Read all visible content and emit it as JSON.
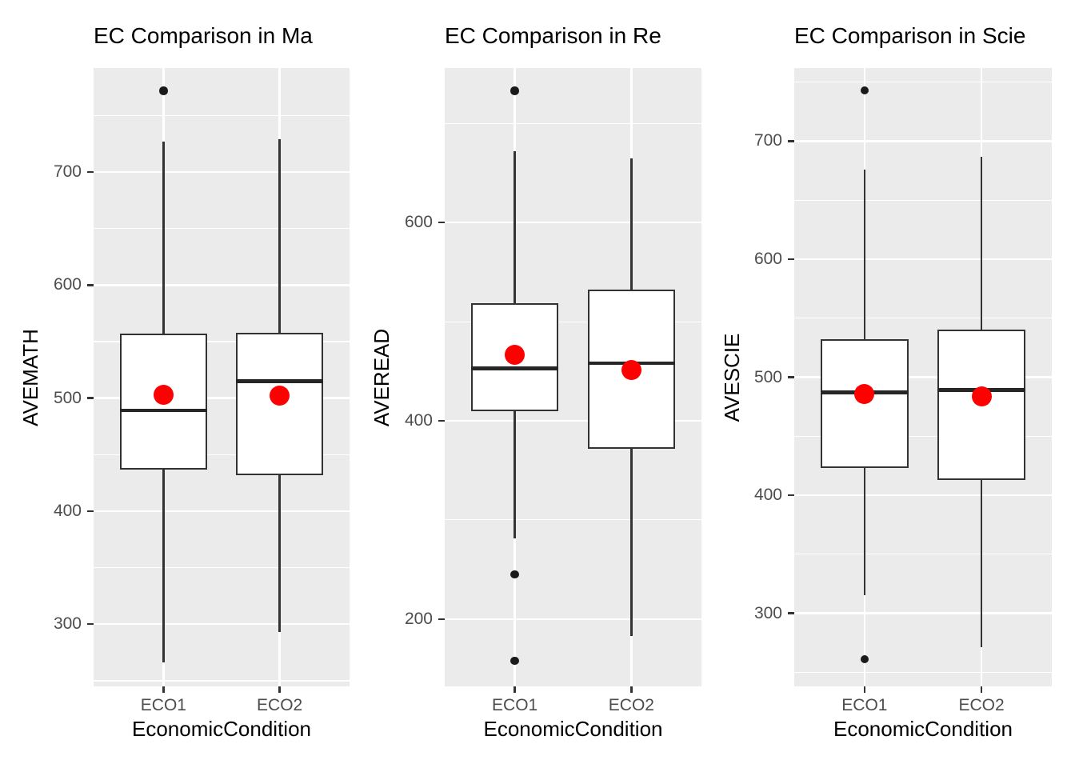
{
  "colors": {
    "panel_bg": "#ebebeb",
    "gridline": "#ffffff",
    "box_border": "#333333",
    "median_line": "#262626",
    "mean_dot": "#ff0000",
    "outlier_dot": "#1a1a1a",
    "tick_mark": "#333333",
    "tick_text": "#4d4d4d",
    "title_text": "#000000"
  },
  "chart_data": [
    {
      "type": "boxplot",
      "title": "EC Comparison in Ma",
      "ylabel": "AVEMATH",
      "xlabel": "EconomicCondition",
      "categories": [
        "ECO1",
        "ECO2"
      ],
      "yticks": [
        300,
        400,
        500,
        600,
        700
      ],
      "ylim": [
        245,
        792
      ],
      "grid": true,
      "legend": "none",
      "series": [
        {
          "category": "ECO1",
          "whisker_low": 266,
          "q1": 437,
          "median": 489,
          "q3": 557,
          "whisker_high": 727,
          "mean": 503,
          "outliers": [
            772
          ]
        },
        {
          "category": "ECO2",
          "whisker_low": 293,
          "q1": 432,
          "median": 515,
          "q3": 558,
          "whisker_high": 729,
          "mean": 502,
          "outliers": []
        }
      ]
    },
    {
      "type": "boxplot",
      "title": "EC Comparison in Re",
      "ylabel": "AVEREAD",
      "xlabel": "EconomicCondition",
      "categories": [
        "ECO1",
        "ECO2"
      ],
      "yticks": [
        200,
        400,
        600
      ],
      "ylim": [
        132,
        756
      ],
      "grid": true,
      "legend": "none",
      "series": [
        {
          "category": "ECO1",
          "whisker_low": 281,
          "q1": 410,
          "median": 453,
          "q3": 519,
          "whisker_high": 672,
          "mean": 467,
          "outliers": [
            733,
            245,
            158
          ]
        },
        {
          "category": "ECO2",
          "whisker_low": 183,
          "q1": 372,
          "median": 458,
          "q3": 532,
          "whisker_high": 665,
          "mean": 451,
          "outliers": []
        }
      ]
    },
    {
      "type": "boxplot",
      "title": "EC Comparison in Scie",
      "ylabel": "AVESCIE",
      "xlabel": "EconomicCondition",
      "categories": [
        "ECO1",
        "ECO2"
      ],
      "yticks": [
        300,
        400,
        500,
        600,
        700
      ],
      "ylim": [
        238,
        762
      ],
      "grid": true,
      "legend": "none",
      "series": [
        {
          "category": "ECO1",
          "whisker_low": 315,
          "q1": 423,
          "median": 487,
          "q3": 532,
          "whisker_high": 676,
          "mean": 486,
          "outliers": [
            743,
            261
          ]
        },
        {
          "category": "ECO2",
          "whisker_low": 271,
          "q1": 413,
          "median": 489,
          "q3": 540,
          "whisker_high": 687,
          "mean": 484,
          "outliers": []
        }
      ]
    }
  ]
}
